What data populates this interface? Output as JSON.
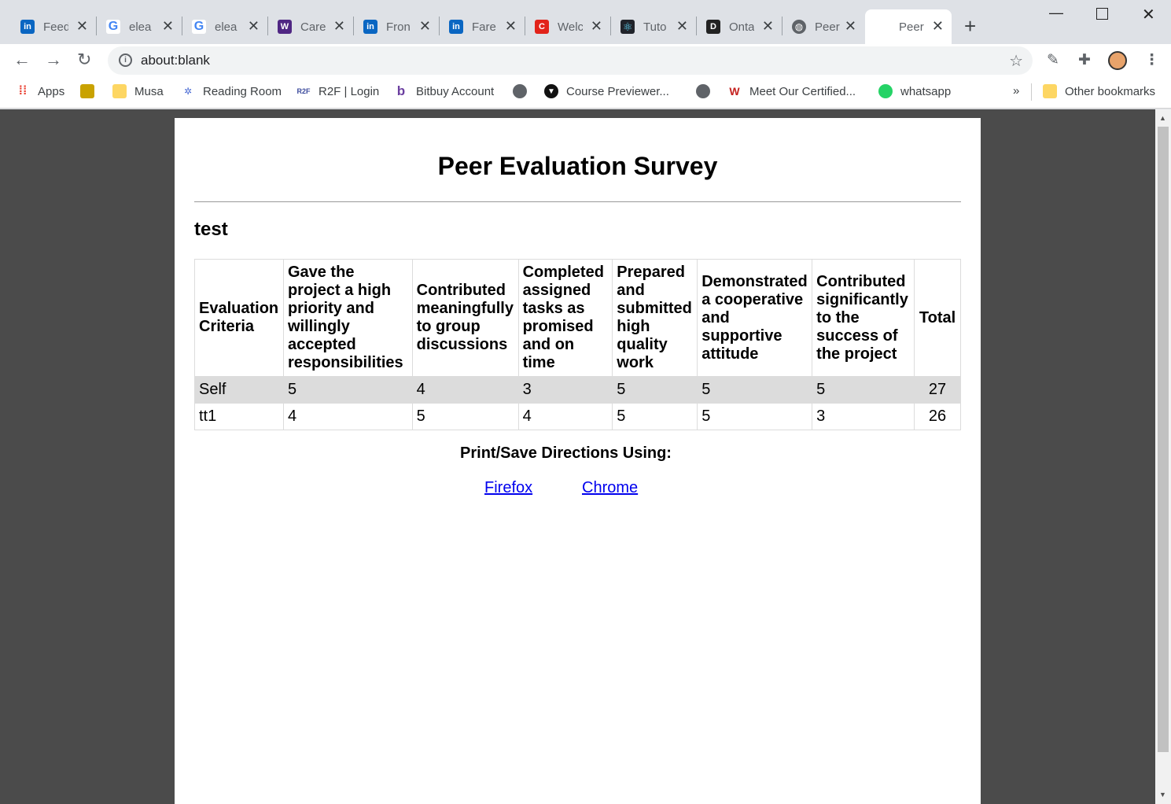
{
  "browser": {
    "tabs": [
      {
        "label": "Feed",
        "icon": "linkedin-icon",
        "color": "#0a66c2",
        "glyph": "in"
      },
      {
        "label": "elea",
        "icon": "google-icon",
        "color": "#4285f4",
        "glyph": "G"
      },
      {
        "label": "elea",
        "icon": "google-icon",
        "color": "#4285f4",
        "glyph": "G"
      },
      {
        "label": "Care",
        "icon": "western-shield-icon",
        "color": "#4f2683",
        "glyph": "W"
      },
      {
        "label": "Fron",
        "icon": "linkedin-icon",
        "color": "#0a66c2",
        "glyph": "in"
      },
      {
        "label": "Fare",
        "icon": "linkedin-icon",
        "color": "#0a66c2",
        "glyph": "in"
      },
      {
        "label": "Welc",
        "icon": "coursera-c-icon",
        "color": "#e2231a",
        "glyph": "C"
      },
      {
        "label": "Tuto",
        "icon": "react-atom-icon",
        "color": "#20232a",
        "glyph": "⚛"
      },
      {
        "label": "Onta",
        "icon": "dms-icon",
        "color": "#222222",
        "glyph": "D"
      },
      {
        "label": "Peer",
        "icon": "globe-icon",
        "color": "#5f6368",
        "glyph": "◍"
      },
      {
        "label": "Peer",
        "icon": "blank-page-icon",
        "color": "#ffffff",
        "glyph": ""
      }
    ],
    "url": "about:blank",
    "bookmarks": [
      {
        "label": "Apps",
        "icon": "apps-grid-icon"
      },
      {
        "label": "",
        "icon": "turtle-icon"
      },
      {
        "label": "Musa",
        "icon": "folder-icon"
      },
      {
        "label": "Reading Room",
        "icon": "dots-icon"
      },
      {
        "label": "R2F | Login",
        "icon": "r2f-icon"
      },
      {
        "label": "Bitbuy Account",
        "icon": "bitbuy-b-icon"
      },
      {
        "label": "",
        "icon": "globe-icon"
      },
      {
        "label": "Course Previewer...",
        "icon": "course-previewer-icon"
      },
      {
        "label": "",
        "icon": "globe-icon"
      },
      {
        "label": "Meet Our Certified...",
        "icon": "certified-icon"
      },
      {
        "label": "whatsapp",
        "icon": "whatsapp-icon"
      },
      {
        "label": "»",
        "icon": ""
      },
      {
        "label": "Other bookmarks",
        "icon": "folder-icon"
      }
    ]
  },
  "survey": {
    "title": "Peer Evaluation Survey",
    "subtitle": "test",
    "headers": [
      "Evaluation Criteria",
      "Gave the project a high priority and willingly accepted responsibilities",
      "Contributed meaningfully to group discussions",
      "Completed assigned tasks as promised and on time",
      "Prepared and submitted high quality work",
      "Demonstrated a cooperative and supportive attitude",
      "Contributed significantly to the success of the project",
      "Total"
    ],
    "rows": [
      [
        "Self",
        "5",
        "4",
        "3",
        "5",
        "5",
        "5",
        "27"
      ],
      [
        "tt1",
        "4",
        "5",
        "4",
        "5",
        "5",
        "3",
        "26"
      ]
    ],
    "directions": "Print/Save Directions Using:",
    "links": [
      "Firefox",
      "Chrome"
    ]
  }
}
